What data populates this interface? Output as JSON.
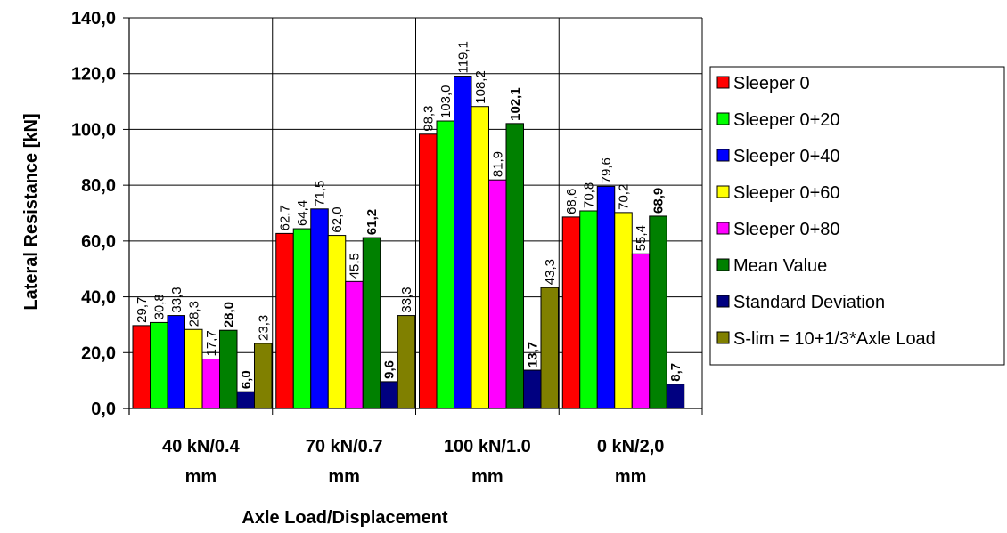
{
  "chart_data": {
    "type": "bar",
    "ylabel": "Lateral Resistance [kN]",
    "xlabel": "Axle Load/Displacement",
    "ylim": [
      0,
      140
    ],
    "yticks": [
      "0,0",
      "20,0",
      "40,0",
      "60,0",
      "80,0",
      "100,0",
      "120,0",
      "140,0"
    ],
    "grid": true,
    "legend_position": "right",
    "categories": [
      [
        "40 kN/0.4",
        "mm"
      ],
      [
        "70 kN/0.7",
        "mm"
      ],
      [
        "100 kN/1.0",
        "mm"
      ],
      [
        "0 kN/2,0",
        "mm"
      ]
    ],
    "series": [
      {
        "name": "Sleeper 0",
        "color": "#ff0000",
        "values": [
          29.7,
          62.7,
          98.3,
          68.6
        ],
        "labels": [
          "29,7",
          "62,7",
          "98,3",
          "68,6"
        ],
        "bold": false
      },
      {
        "name": "Sleeper 0+20",
        "color": "#00ff00",
        "values": [
          30.8,
          64.4,
          103.0,
          70.8
        ],
        "labels": [
          "30,8",
          "64,4",
          "103,0",
          "70,8"
        ],
        "bold": false
      },
      {
        "name": "Sleeper 0+40",
        "color": "#0000ff",
        "values": [
          33.3,
          71.5,
          119.1,
          79.6
        ],
        "labels": [
          "33,3",
          "71,5",
          "119,1",
          "79,6"
        ],
        "bold": false
      },
      {
        "name": "Sleeper 0+60",
        "color": "#ffff00",
        "values": [
          28.3,
          62.0,
          108.2,
          70.2
        ],
        "labels": [
          "28,3",
          "62,0",
          "108,2",
          "70,2"
        ],
        "bold": false
      },
      {
        "name": "Sleeper 0+80",
        "color": "#ff00ff",
        "values": [
          17.7,
          45.5,
          81.9,
          55.4
        ],
        "labels": [
          "17,7",
          "45,5",
          "81,9",
          "55,4"
        ],
        "bold": false
      },
      {
        "name": "Mean Value",
        "color": "#008000",
        "values": [
          28.0,
          61.2,
          102.1,
          68.9
        ],
        "labels": [
          "28,0",
          "61,2",
          "102,1",
          "68,9"
        ],
        "bold": true
      },
      {
        "name": "Standard Deviation",
        "color": "#000080",
        "values": [
          6.0,
          9.6,
          13.7,
          8.7
        ],
        "labels": [
          "6,0",
          "9,6",
          "13,7",
          "8,7"
        ],
        "bold": true
      },
      {
        "name": "S-lim = 10+1/3*Axle Load",
        "color": "#808000",
        "values": [
          23.3,
          33.3,
          43.3,
          null
        ],
        "labels": [
          "23,3",
          "33,3",
          "43,3",
          ""
        ],
        "bold": false
      }
    ]
  }
}
